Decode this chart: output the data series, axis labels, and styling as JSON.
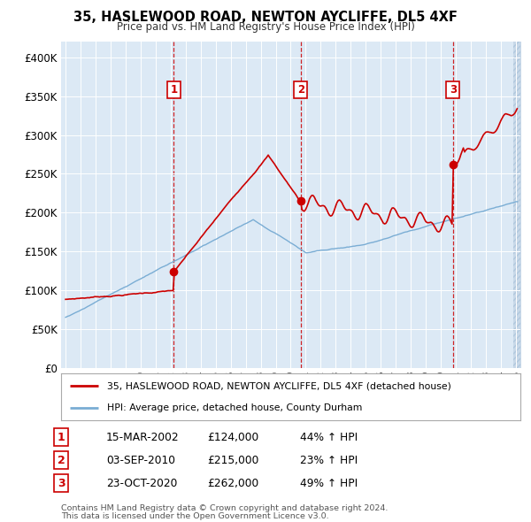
{
  "title": "35, HASLEWOOD ROAD, NEWTON AYCLIFFE, DL5 4XF",
  "subtitle": "Price paid vs. HM Land Registry's House Price Index (HPI)",
  "legend_line1": "35, HASLEWOOD ROAD, NEWTON AYCLIFFE, DL5 4XF (detached house)",
  "legend_line2": "HPI: Average price, detached house, County Durham",
  "sale_dates_label": [
    "15-MAR-2002",
    "03-SEP-2010",
    "23-OCT-2020"
  ],
  "sale_prices_label": [
    "£124,000",
    "£215,000",
    "£262,000"
  ],
  "sale_hpi_label": [
    "44% ↑ HPI",
    "23% ↑ HPI",
    "49% ↑ HPI"
  ],
  "sale_years": [
    2002.21,
    2010.67,
    2020.81
  ],
  "sale_prices": [
    124000,
    215000,
    262000
  ],
  "footer1": "Contains HM Land Registry data © Crown copyright and database right 2024.",
  "footer2": "This data is licensed under the Open Government Licence v3.0.",
  "red_color": "#cc0000",
  "blue_color": "#7aadd4",
  "bg_color": "#dce9f5",
  "plot_bg": "#ffffff",
  "ylim": [
    0,
    400000
  ],
  "xlim": [
    1994.7,
    2025.3
  ],
  "hatch_color": "#c8d8e8"
}
